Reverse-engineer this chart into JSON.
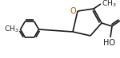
{
  "bg_color": "#ffffff",
  "line_color": "#1a1a1a",
  "line_width": 1.2,
  "font_size": 6.5,
  "figsize": [
    1.5,
    0.73
  ],
  "dpi": 100
}
